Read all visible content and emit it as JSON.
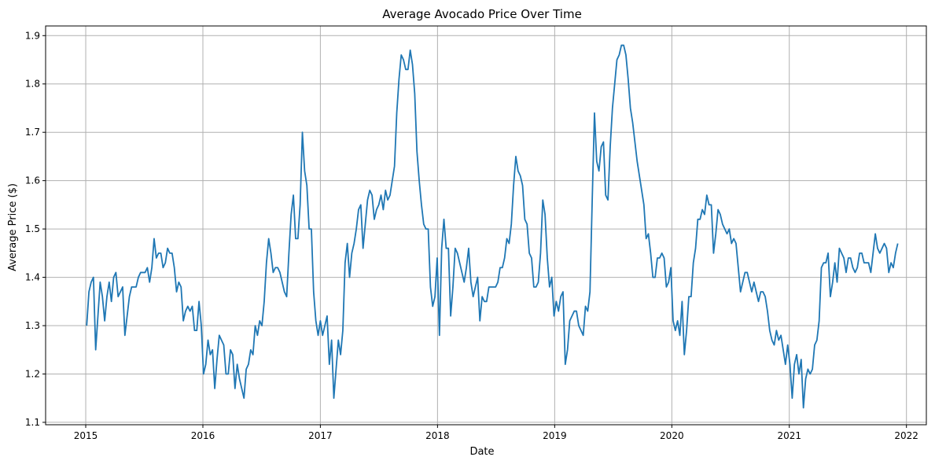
{
  "chart_data": {
    "type": "line",
    "title": "Average Avocado Price Over Time",
    "xlabel": "Date",
    "ylabel": "Average Price ($)",
    "x_axis_kind": "date",
    "xlim": [
      "2014-08-29",
      "2022-03-04"
    ],
    "ylim": [
      1.095,
      1.92
    ],
    "x_ticks": [
      {
        "date": "2015-01-01",
        "label": "2015"
      },
      {
        "date": "2016-01-01",
        "label": "2016"
      },
      {
        "date": "2017-01-01",
        "label": "2017"
      },
      {
        "date": "2018-01-01",
        "label": "2018"
      },
      {
        "date": "2019-01-01",
        "label": "2019"
      },
      {
        "date": "2020-01-01",
        "label": "2020"
      },
      {
        "date": "2021-01-01",
        "label": "2021"
      },
      {
        "date": "2022-01-01",
        "label": "2022"
      }
    ],
    "y_ticks": [
      1.1,
      1.2,
      1.3,
      1.4,
      1.5,
      1.6,
      1.7,
      1.8,
      1.9
    ],
    "grid": true,
    "legend": "none",
    "line_color": "#1f77b4",
    "series": [
      {
        "x_start": "2015-01-04",
        "x_step_days": 7,
        "values": [
          1.3,
          1.37,
          1.39,
          1.4,
          1.25,
          1.32,
          1.39,
          1.36,
          1.31,
          1.36,
          1.39,
          1.35,
          1.4,
          1.41,
          1.36,
          1.37,
          1.38,
          1.28,
          1.32,
          1.36,
          1.38,
          1.38,
          1.38,
          1.4,
          1.41,
          1.41,
          1.41,
          1.42,
          1.39,
          1.42,
          1.48,
          1.44,
          1.45,
          1.45,
          1.42,
          1.43,
          1.46,
          1.45,
          1.45,
          1.42,
          1.37,
          1.39,
          1.38,
          1.31,
          1.33,
          1.34,
          1.33,
          1.34,
          1.29,
          1.29,
          1.35,
          1.3,
          1.2,
          1.22,
          1.27,
          1.24,
          1.25,
          1.17,
          1.23,
          1.28,
          1.27,
          1.26,
          1.2,
          1.2,
          1.25,
          1.24,
          1.17,
          1.22,
          1.19,
          1.17,
          1.15,
          1.21,
          1.22,
          1.25,
          1.24,
          1.3,
          1.28,
          1.31,
          1.3,
          1.35,
          1.43,
          1.48,
          1.45,
          1.41,
          1.42,
          1.42,
          1.41,
          1.39,
          1.37,
          1.36,
          1.45,
          1.53,
          1.57,
          1.48,
          1.48,
          1.55,
          1.7,
          1.62,
          1.59,
          1.5,
          1.5,
          1.37,
          1.31,
          1.28,
          1.31,
          1.28,
          1.3,
          1.32,
          1.22,
          1.27,
          1.15,
          1.21,
          1.27,
          1.24,
          1.29,
          1.43,
          1.47,
          1.4,
          1.45,
          1.47,
          1.5,
          1.54,
          1.55,
          1.46,
          1.51,
          1.56,
          1.58,
          1.57,
          1.52,
          1.54,
          1.55,
          1.57,
          1.54,
          1.58,
          1.56,
          1.57,
          1.6,
          1.63,
          1.74,
          1.81,
          1.86,
          1.85,
          1.83,
          1.83,
          1.87,
          1.84,
          1.78,
          1.66,
          1.6,
          1.55,
          1.51,
          1.5,
          1.5,
          1.38,
          1.34,
          1.36,
          1.44,
          1.28,
          1.46,
          1.52,
          1.46,
          1.46,
          1.32,
          1.38,
          1.46,
          1.45,
          1.43,
          1.41,
          1.39,
          1.42,
          1.46,
          1.39,
          1.36,
          1.38,
          1.4,
          1.31,
          1.36,
          1.35,
          1.35,
          1.38,
          1.38,
          1.38,
          1.38,
          1.39,
          1.42,
          1.42,
          1.44,
          1.48,
          1.47,
          1.51,
          1.59,
          1.65,
          1.62,
          1.61,
          1.59,
          1.52,
          1.51,
          1.45,
          1.44,
          1.38,
          1.38,
          1.39,
          1.45,
          1.56,
          1.53,
          1.44,
          1.38,
          1.4,
          1.32,
          1.35,
          1.33,
          1.36,
          1.37,
          1.22,
          1.25,
          1.31,
          1.32,
          1.33,
          1.33,
          1.3,
          1.29,
          1.28,
          1.34,
          1.33,
          1.37,
          1.56,
          1.74,
          1.64,
          1.62,
          1.67,
          1.68,
          1.57,
          1.56,
          1.67,
          1.75,
          1.8,
          1.85,
          1.86,
          1.88,
          1.88,
          1.86,
          1.81,
          1.75,
          1.72,
          1.68,
          1.64,
          1.61,
          1.58,
          1.55,
          1.48,
          1.49,
          1.45,
          1.4,
          1.4,
          1.44,
          1.44,
          1.45,
          1.44,
          1.38,
          1.39,
          1.42,
          1.31,
          1.29,
          1.31,
          1.28,
          1.35,
          1.24,
          1.29,
          1.36,
          1.36,
          1.43,
          1.46,
          1.52,
          1.52,
          1.54,
          1.53,
          1.57,
          1.55,
          1.55,
          1.45,
          1.49,
          1.54,
          1.53,
          1.51,
          1.5,
          1.49,
          1.5,
          1.47,
          1.48,
          1.47,
          1.42,
          1.37,
          1.39,
          1.41,
          1.41,
          1.39,
          1.37,
          1.39,
          1.37,
          1.35,
          1.37,
          1.37,
          1.36,
          1.33,
          1.29,
          1.27,
          1.26,
          1.29,
          1.27,
          1.28,
          1.25,
          1.22,
          1.26,
          1.22,
          1.15,
          1.22,
          1.24,
          1.2,
          1.23,
          1.13,
          1.19,
          1.21,
          1.2,
          1.21,
          1.26,
          1.27,
          1.31,
          1.42,
          1.43,
          1.43,
          1.45,
          1.36,
          1.39,
          1.43,
          1.39,
          1.46,
          1.45,
          1.44,
          1.41,
          1.44,
          1.44,
          1.42,
          1.41,
          1.42,
          1.45,
          1.45,
          1.43,
          1.43,
          1.43,
          1.41,
          1.45,
          1.49,
          1.46,
          1.45,
          1.46,
          1.47,
          1.46,
          1.41,
          1.43,
          1.42,
          1.45,
          1.47
        ]
      }
    ]
  }
}
